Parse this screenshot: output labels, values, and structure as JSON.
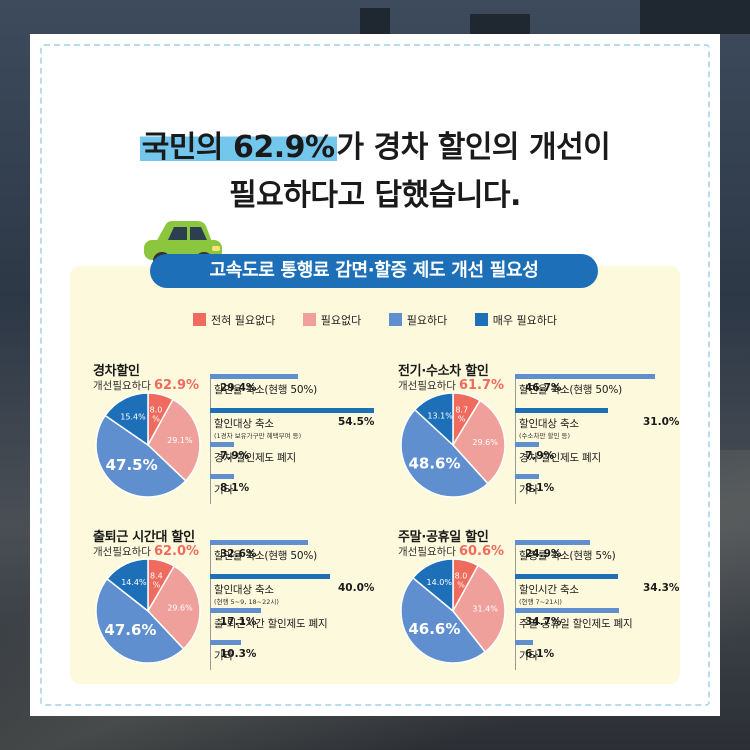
{
  "headline": {
    "line1_highlight": "국민의 62.9%",
    "line1_rest": "가 경차 할인의 개선이",
    "line2": "필요하다고 답했습니다."
  },
  "banner_title": "고속도로 통행료 감면·할증 제도 개선 필요성",
  "colors": {
    "strongly_unnecessary": "#ef6b5e",
    "unnecessary": "#f0a09a",
    "necessary": "#5f8fcf",
    "very_necessary": "#1d6fb8"
  },
  "legend": [
    "전혀 필요없다",
    "필요없다",
    "필요하다",
    "매우 필요하다"
  ],
  "chart_data": [
    {
      "type": "pie",
      "title": "경차할인",
      "subtitle_label": "개선필요하다",
      "subtitle_value": "62.9%",
      "slices": [
        {
          "label": "전혀 필요없다",
          "value": 8.0,
          "text": "8.0\n%"
        },
        {
          "label": "필요없다",
          "value": 29.1,
          "text": "29.1%"
        },
        {
          "label": "필요하다",
          "value": 47.5,
          "text": "47.5%"
        },
        {
          "label": "매우 필요하다",
          "value": 15.4,
          "text": "15.4%"
        }
      ],
      "bars": [
        {
          "label": "할인율 축소(현행 50%)",
          "value": 29.4,
          "value_text": "29.4%",
          "note": ""
        },
        {
          "label": "할인대상 축소",
          "value": 54.5,
          "value_text": "54.5%",
          "note": "(1경차 보유가구만 혜택부여 등)"
        },
        {
          "label": "경차 할인제도 폐지",
          "value": 7.9,
          "value_text": "7.9%",
          "note": ""
        },
        {
          "label": "기타",
          "value": 8.1,
          "value_text": "8.1%",
          "note": ""
        }
      ]
    },
    {
      "type": "pie",
      "title": "전기·수소차 할인",
      "subtitle_label": "개선필요하다",
      "subtitle_value": "61.7%",
      "slices": [
        {
          "label": "전혀 필요없다",
          "value": 8.7,
          "text": "8.7\n%"
        },
        {
          "label": "필요없다",
          "value": 29.6,
          "text": "29.6%"
        },
        {
          "label": "필요하다",
          "value": 48.6,
          "text": "48.6%"
        },
        {
          "label": "매우 필요하다",
          "value": 13.1,
          "text": "13.1%"
        }
      ],
      "bars": [
        {
          "label": "할인율 축소(현행 50%)",
          "value": 46.7,
          "value_text": "46.7%",
          "note": ""
        },
        {
          "label": "할인대상 축소",
          "value": 31.0,
          "value_text": "31.0%",
          "note": "(수소차만 할인 등)"
        },
        {
          "label": "경차 할인제도 폐지",
          "value": 7.9,
          "value_text": "7.9%",
          "note": ""
        },
        {
          "label": "기타",
          "value": 8.1,
          "value_text": "8.1%",
          "note": ""
        }
      ]
    },
    {
      "type": "pie",
      "title": "출퇴근 시간대 할인",
      "subtitle_label": "개선필요하다",
      "subtitle_value": "62.0%",
      "slices": [
        {
          "label": "전혀 필요없다",
          "value": 8.4,
          "text": "8.4\n%"
        },
        {
          "label": "필요없다",
          "value": 29.6,
          "text": "29.6%"
        },
        {
          "label": "필요하다",
          "value": 47.6,
          "text": "47.6%"
        },
        {
          "label": "매우 필요하다",
          "value": 14.4,
          "text": "14.4%"
        }
      ],
      "bars": [
        {
          "label": "할인율 축소(현행 50%)",
          "value": 32.6,
          "value_text": "32.6%",
          "note": ""
        },
        {
          "label": "할인대상 축소",
          "value": 40.0,
          "value_text": "40.0%",
          "note": "(현행 5~9, 18~22시)"
        },
        {
          "label": "출·퇴근시간 할인제도 폐지",
          "value": 17.1,
          "value_text": "17.1%",
          "note": ""
        },
        {
          "label": "기타",
          "value": 10.3,
          "value_text": "10.3%",
          "note": ""
        }
      ]
    },
    {
      "type": "pie",
      "title": "주말·공휴일 할인",
      "subtitle_label": "개선필요하다",
      "subtitle_value": "60.6%",
      "slices": [
        {
          "label": "전혀 필요없다",
          "value": 8.0,
          "text": "8.0\n%"
        },
        {
          "label": "필요없다",
          "value": 31.4,
          "text": "31.4%"
        },
        {
          "label": "필요하다",
          "value": 46.6,
          "text": "46.6%"
        },
        {
          "label": "매우 필요하다",
          "value": 14.0,
          "text": "14.0%"
        }
      ],
      "bars": [
        {
          "label": "할증률 축소(현행 5%)",
          "value": 24.9,
          "value_text": "24.9%",
          "note": ""
        },
        {
          "label": "할인시간 축소",
          "value": 34.3,
          "value_text": "34.3%",
          "note": "(현행 7~21시)"
        },
        {
          "label": "주말·공휴일 할인제도 폐지",
          "value": 34.7,
          "value_text": "34.7%",
          "note": ""
        },
        {
          "label": "기타",
          "value": 6.1,
          "value_text": "6.1%",
          "note": ""
        }
      ]
    }
  ]
}
